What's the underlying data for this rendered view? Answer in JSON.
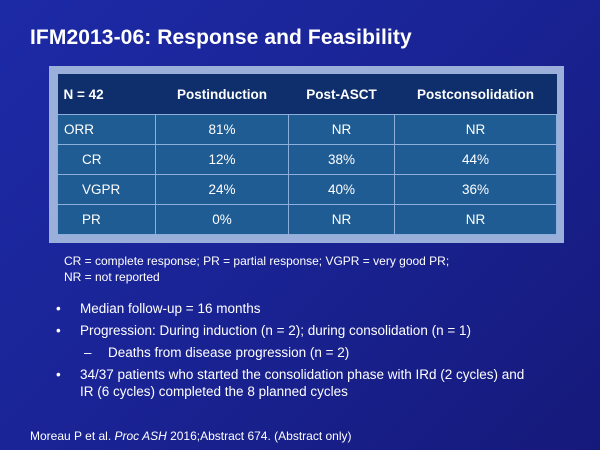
{
  "title": "IFM2013-06: Response and Feasibility",
  "table": {
    "headers": [
      "N = 42",
      "Postinduction",
      "Post-ASCT",
      "Postconsolidation"
    ],
    "rows": [
      {
        "label": "ORR",
        "postinduction": "81%",
        "post_asct": "NR",
        "postconsolidation": "NR"
      },
      {
        "label": "CR",
        "postinduction": "12%",
        "post_asct": "38%",
        "postconsolidation": "44%"
      },
      {
        "label": "VGPR",
        "postinduction": "24%",
        "post_asct": "40%",
        "postconsolidation": "36%"
      },
      {
        "label": "PR",
        "postinduction": "0%",
        "post_asct": "NR",
        "postconsolidation": "NR"
      }
    ]
  },
  "footnote": {
    "line1": "CR = complete response; PR = partial response; VGPR = very good PR;",
    "line2": "NR = not reported"
  },
  "bullets": {
    "b1": "Median follow-up = 16 months",
    "b2": "Progression: During induction (n = 2); during consolidation (n = 1)",
    "b2_sub": "Deaths from disease progression (n = 2)",
    "b3_line1": "34/37 patients who started the consolidation phase with IRd (2 cycles) and",
    "b3_line2": "IR (6 cycles) completed the 8 planned cycles"
  },
  "citation": {
    "authors": "Moreau P et al. ",
    "journal": "Proc ASH",
    "rest": " 2016;Abstract 674. (Abstract only)"
  },
  "symbols": {
    "bullet": "•",
    "dash": "–"
  },
  "colors": {
    "background": "#1a2496",
    "table_header": "#0e2f6b",
    "table_row": "#1f5c93",
    "table_frame": "#9ab0da"
  }
}
